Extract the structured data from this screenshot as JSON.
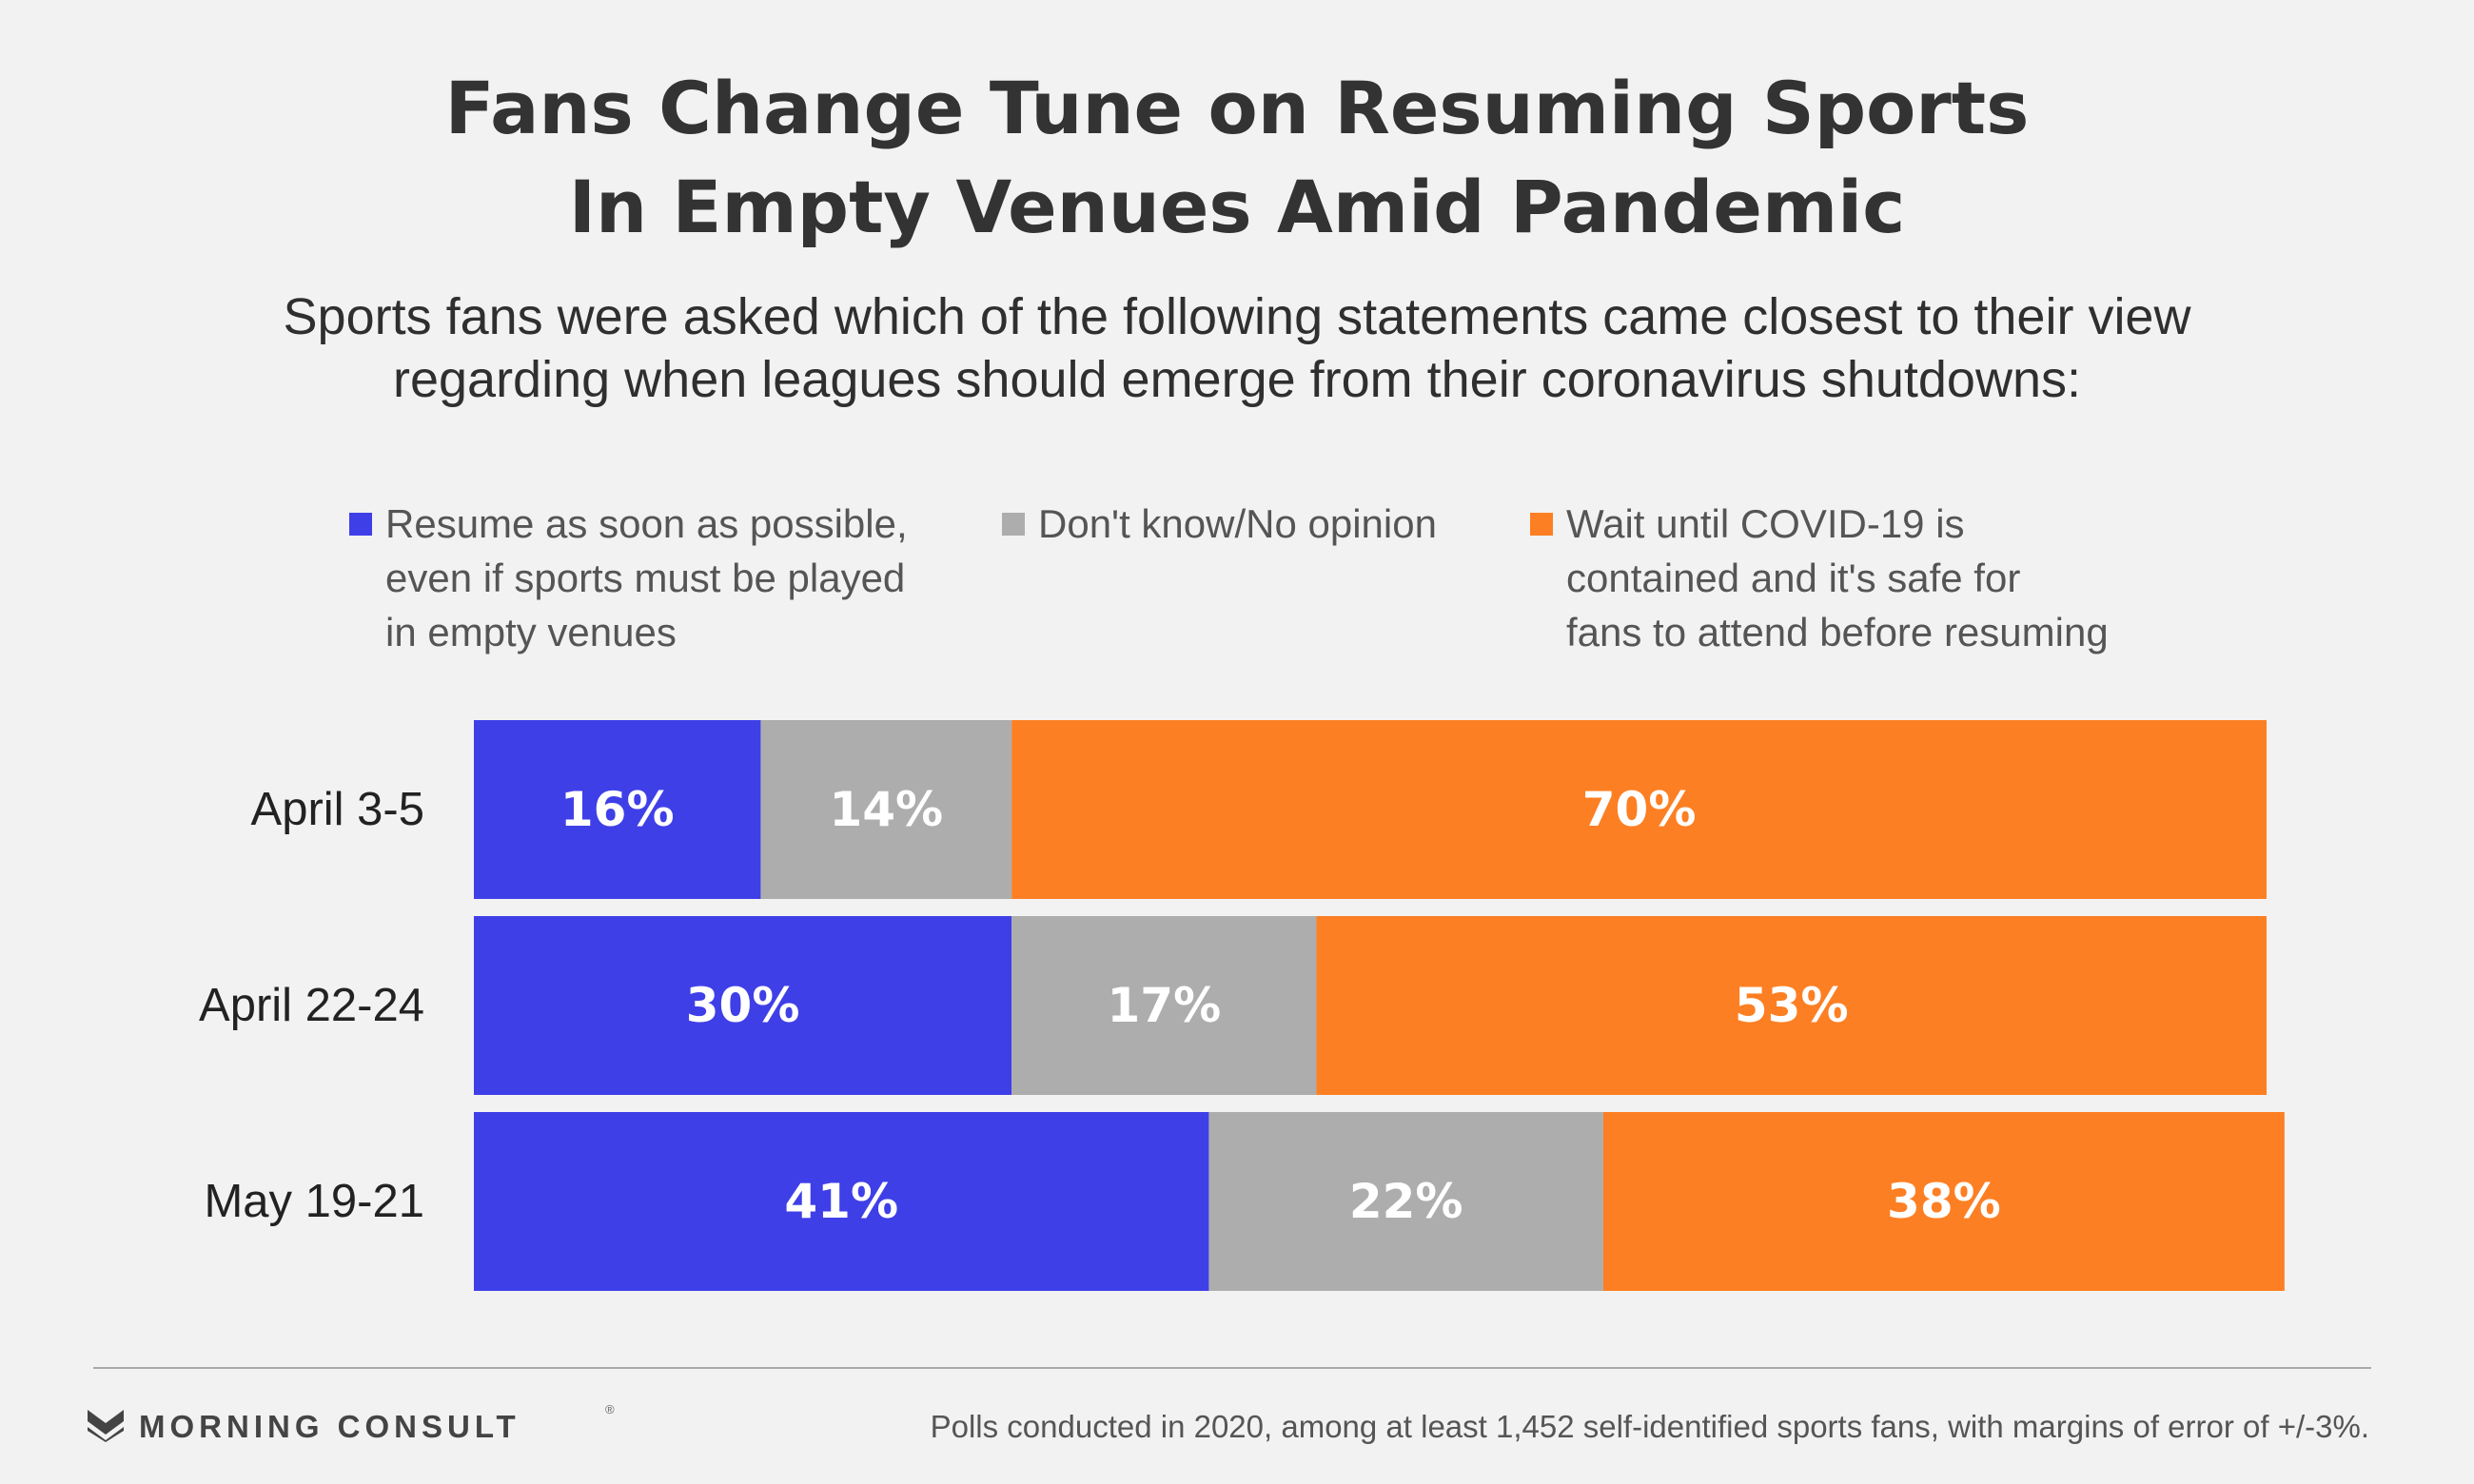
{
  "header": {
    "title_lines": [
      "Fans Change Tune on Resuming Sports",
      "In Empty Venues Amid Pandemic"
    ],
    "subtitle_lines": [
      "Sports fans were asked which of the following statements came closest to their view",
      "regarding when leagues should emerge from their coronavirus shutdowns:"
    ]
  },
  "legend": [
    {
      "lines": [
        "Resume as soon as possible,",
        "even if sports must be played",
        "in empty venues"
      ],
      "color": "#3f3fe8"
    },
    {
      "lines": [
        "Don't know/No opinion"
      ],
      "color": "#adadad"
    },
    {
      "lines": [
        "Wait until COVID-19 is",
        "contained and it's safe for",
        "fans to attend before resuming"
      ],
      "color": "#fd7f23"
    }
  ],
  "chart_data": {
    "type": "bar",
    "orientation": "horizontal",
    "stacked": true,
    "title": "Fans Change Tune on Resuming Sports In Empty Venues Amid Pandemic",
    "categories": [
      "April 3-5",
      "April 22-24",
      "May 19-21"
    ],
    "series": [
      {
        "name": "Resume as soon as possible, even if sports must be played in empty venues",
        "values": [
          16,
          30,
          41
        ],
        "labels": [
          "16%",
          "30%",
          "41%"
        ],
        "color": "#3f3fe8"
      },
      {
        "name": "Don't know/No opinion",
        "values": [
          14,
          17,
          22
        ],
        "labels": [
          "14%",
          "17%",
          "22%"
        ],
        "color": "#adadad"
      },
      {
        "name": "Wait until COVID-19 is contained and it's safe for fans to attend before resuming",
        "values": [
          70,
          53,
          38
        ],
        "labels": [
          "70%",
          "53%",
          "38%"
        ],
        "color": "#fd7f23"
      }
    ],
    "xlim": [
      0,
      100
    ],
    "grid": false,
    "legend_position": "top"
  },
  "footer": {
    "logo_text": "MORNING CONSULT",
    "logo_mark": "®",
    "note": "Polls conducted in 2020, among at least 1,452 self-identified sports fans, with margins of error of +/-3%."
  }
}
